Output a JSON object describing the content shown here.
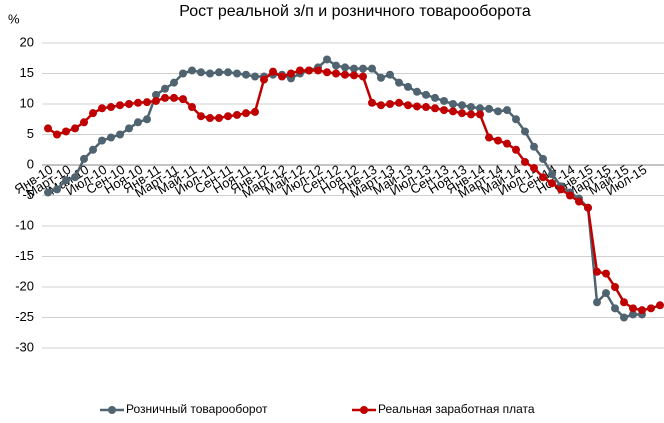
{
  "chart_data": {
    "type": "line",
    "title": "Рост реальной з/п и розничного товарооборота",
    "y_label": "%",
    "categories": [
      "Янв-10",
      null,
      "Март-10",
      null,
      "Май-10",
      null,
      "Июл-10",
      null,
      "Сен-10",
      null,
      "Ноя-10",
      null,
      "Янв-11",
      null,
      "Март-11",
      null,
      "Май-11",
      null,
      "Июл-11",
      null,
      "Сен-11",
      null,
      "Ноя-11",
      null,
      "Янв-12",
      null,
      "Март-12",
      null,
      "Май-12",
      null,
      "Июл-12",
      null,
      "Сен-12",
      null,
      "Ноя-12",
      null,
      "Янв-13",
      null,
      "Март-13",
      null,
      "Май-13",
      null,
      "Июл-13",
      null,
      "Сен-13",
      null,
      "Ноя-13",
      null,
      "Янв-14",
      null,
      "Март-14",
      null,
      "Май-14",
      null,
      "Июл-14",
      null,
      "Сен-14",
      null,
      "Ноя-14",
      null,
      "Янв-15",
      null,
      "Март-15",
      null,
      "Май-15",
      null,
      "Июл-15",
      null,
      null
    ],
    "series": [
      {
        "name": "Розничный товарооборот",
        "color": "#4f6470",
        "values": [
          -4.5,
          -4,
          -2.5,
          -2,
          1,
          2.5,
          4,
          4.5,
          5,
          6,
          7,
          7.5,
          11.5,
          12.5,
          13.5,
          15,
          15.5,
          15.2,
          15,
          15.2,
          15.2,
          15,
          14.8,
          14.5,
          14.5,
          14.8,
          14.8,
          14.2,
          15,
          15.5,
          16,
          17.3,
          16.3,
          16,
          15.8,
          15.8,
          15.8,
          14.3,
          14.8,
          13.5,
          12.8,
          12,
          11.5,
          11,
          10.5,
          10,
          9.8,
          9.5,
          9.3,
          9.2,
          8.8,
          9,
          7.5,
          5.5,
          3,
          1,
          -1.5,
          -3.5,
          -4.5,
          -5.5,
          -7,
          -22.5,
          -21,
          -23.5,
          -25,
          -24.5,
          -24.5,
          null,
          null
        ]
      },
      {
        "name": "Реальная заработная плата",
        "color": "#c00000",
        "values": [
          6,
          5,
          5.5,
          6,
          7,
          8.5,
          9.3,
          9.5,
          9.8,
          10,
          10.2,
          10.3,
          10.5,
          11,
          11,
          10.8,
          9.5,
          8,
          7.7,
          7.7,
          8,
          8.2,
          8.5,
          8.7,
          14,
          15.3,
          14.5,
          15,
          15.5,
          15.5,
          15.5,
          15.2,
          15,
          14.8,
          14.7,
          14.5,
          10.2,
          9.8,
          10,
          10.2,
          9.8,
          9.6,
          9.5,
          9.3,
          9,
          8.8,
          8.5,
          8.3,
          8.3,
          4.5,
          4,
          3.5,
          2.5,
          0.5,
          -0.5,
          -2,
          -3,
          -4,
          -5,
          -6,
          -7,
          -17.5,
          -17.8,
          -20,
          -22.5,
          -23.5,
          -23.8,
          -23.5,
          -23
        ]
      }
    ],
    "ylim": [
      -30,
      20
    ],
    "yticks": [
      -30,
      -25,
      -20,
      -15,
      -10,
      -5,
      0,
      5,
      10,
      15,
      20
    ],
    "grid": true
  }
}
